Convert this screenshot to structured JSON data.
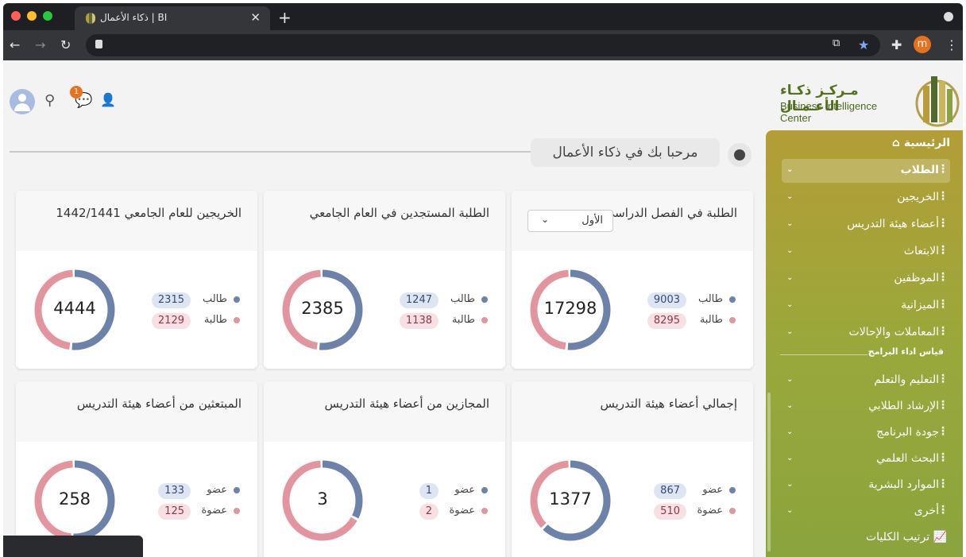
{
  "browser": {
    "tab_title": "ذكاء الأعمال | BI",
    "new_tab": "+",
    "close": "✕",
    "profile_initial": "m"
  },
  "header": {
    "logo_ar": "مـركـز ذكـاء الأعـمـال",
    "logo_en": "Business Intelligence Center",
    "notification_count": "1",
    "welcome": "مرحبا بك في ذكاء الأعمال"
  },
  "sidebar": {
    "home": "الرئيسية",
    "items": [
      {
        "label": "الطلاب",
        "active": true
      },
      {
        "label": "الخريجين"
      },
      {
        "label": "أعضاء هيئة التدريس"
      },
      {
        "label": "الابتعاث"
      },
      {
        "label": "الموظفين"
      },
      {
        "label": "الميزانية"
      },
      {
        "label": "المعاملات والإحالات"
      }
    ],
    "section_label": "قياس اداء البرامج",
    "section_items": [
      {
        "label": "التعليم والتعلم"
      },
      {
        "label": "الإرشاد الطلابي"
      },
      {
        "label": "جودة البرنامج"
      },
      {
        "label": "البحث العلمي"
      },
      {
        "label": "الموارد البشرية"
      },
      {
        "label": "أخرى"
      }
    ],
    "last_item": "ترتيب الكليات"
  },
  "cards": [
    {
      "title": "الطلبة في الفصل الدراسي",
      "select": "الأول",
      "total": "17298",
      "rows": [
        {
          "label": "طالب",
          "value": "9003"
        },
        {
          "label": "طالبة",
          "value": "8295"
        }
      ]
    },
    {
      "title": "الطلبة المستجدين في العام الجامعي",
      "total": "2385",
      "rows": [
        {
          "label": "طالب",
          "value": "1247"
        },
        {
          "label": "طالبة",
          "value": "1138"
        }
      ]
    },
    {
      "title": "الخريجين للعام الجامعي 1442/1441",
      "total": "4444",
      "rows": [
        {
          "label": "طالب",
          "value": "2315"
        },
        {
          "label": "طالبة",
          "value": "2129"
        }
      ]
    },
    {
      "title": "إجمالي أعضاء هيئة التدريس",
      "total": "1377",
      "rows": [
        {
          "label": "عضو",
          "value": "867"
        },
        {
          "label": "عضوة",
          "value": "510"
        }
      ]
    },
    {
      "title": "المجازين من أعضاء هيئة التدريس",
      "total": "3",
      "rows": [
        {
          "label": "عضو",
          "value": "1"
        },
        {
          "label": "عضوة",
          "value": "2"
        }
      ]
    },
    {
      "title": "المبتعثين من أعضاء هيئة التدريس",
      "total": "258",
      "rows": [
        {
          "label": "عضو",
          "value": "133"
        },
        {
          "label": "عضوة",
          "value": "125"
        }
      ]
    }
  ],
  "colors": {
    "male": "#6d82a8",
    "female": "#e3959f",
    "sidebar": "#a4a23a"
  }
}
